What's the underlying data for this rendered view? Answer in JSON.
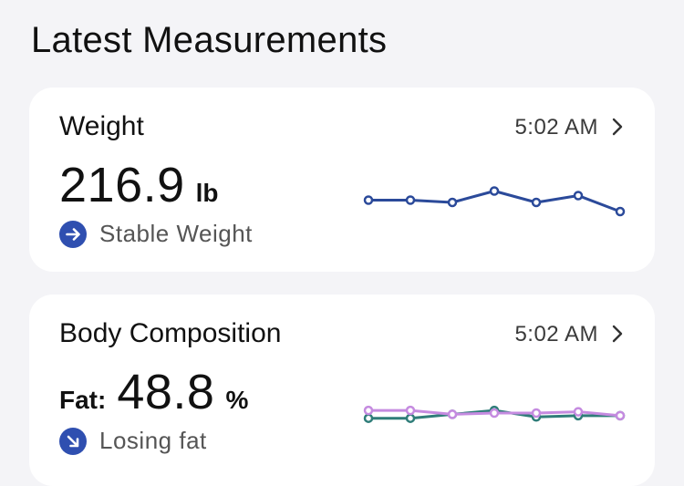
{
  "header": {
    "title": "Latest Measurements"
  },
  "weight_card": {
    "title": "Weight",
    "time": "5:02 AM",
    "value": "216.9",
    "unit": "lb",
    "status": "Stable Weight",
    "status_icon": "arrow-right-icon",
    "trend": [
      216.9,
      216.9,
      216.8,
      217.3,
      216.8,
      217.1,
      216.4
    ],
    "color": "#2b4a9a"
  },
  "body_card": {
    "title": "Body Composition",
    "time": "5:02 AM",
    "label": "Fat:",
    "value": "48.8",
    "unit": "%",
    "status": "Losing fat",
    "status_icon": "arrow-down-right-icon",
    "trend_a": [
      48.6,
      48.6,
      48.9,
      49.2,
      48.7,
      48.8,
      48.8
    ],
    "trend_b": [
      49.2,
      49.2,
      48.9,
      49.0,
      49.0,
      49.1,
      48.8
    ],
    "color_a": "#2f7d79",
    "color_b": "#c58be0"
  },
  "colors": {
    "accent": "#2f4fb0",
    "chevron": "#333333"
  }
}
